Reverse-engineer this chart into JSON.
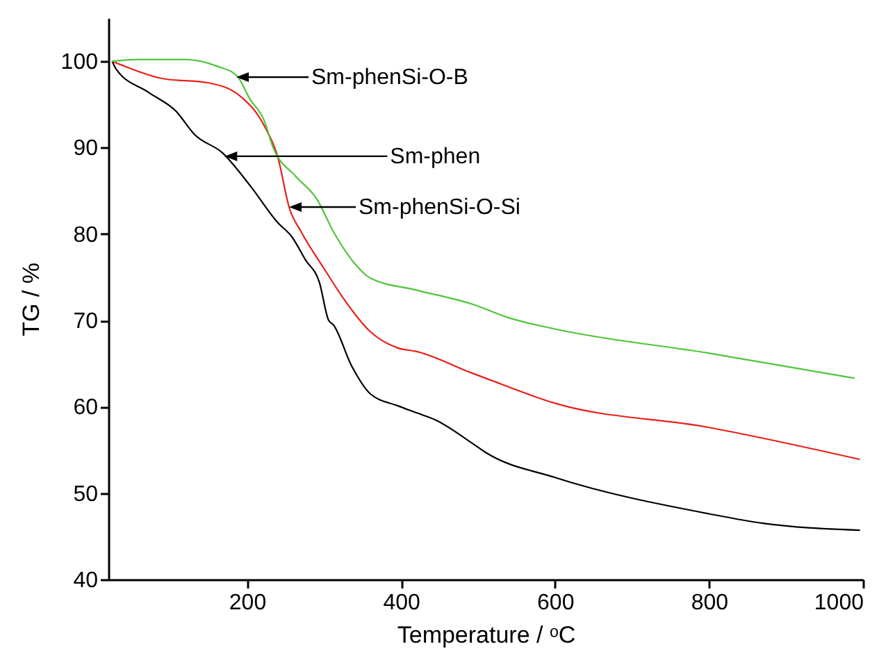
{
  "chart_data": {
    "type": "line",
    "xlabel": "Temperature / ᵒC",
    "ylabel": "TG / %",
    "xlim": [
      20,
      1000
    ],
    "ylim": [
      40,
      105
    ],
    "xticks": [
      200,
      400,
      600,
      800,
      1000
    ],
    "yticks": [
      40,
      50,
      60,
      70,
      80,
      90,
      100
    ],
    "grid": false,
    "line_style": "solid",
    "marker": "none",
    "series": [
      {
        "color": "#000000",
        "x": [
          25,
          30,
          72,
          108,
          132,
          168,
          204,
          240,
          258,
          276,
          294,
          306,
          312,
          336,
          360,
          396,
          420,
          444,
          492,
          510,
          600,
          800,
          870,
          996
        ],
        "values": [
          100,
          99.1,
          96.4,
          94.2,
          91.5,
          89.4,
          85.6,
          81.3,
          79.7,
          77,
          74.4,
          70,
          69.5,
          64.7,
          61.5,
          60.1,
          59.3,
          58.5,
          55.8,
          54.7,
          51.8,
          47.6,
          46.5,
          45.7
        ]
      },
      {
        "color": "#e8201a",
        "x": [
          25,
          36,
          90,
          150,
          192,
          222,
          240,
          255,
          270,
          300,
          324,
          360,
          396,
          420,
          492,
          510,
          600,
          800,
          996
        ],
        "values": [
          100,
          99.6,
          98,
          97.5,
          95.9,
          92.6,
          88.9,
          83,
          80.3,
          76,
          72.7,
          68.7,
          66.8,
          66.4,
          63.9,
          63.3,
          60.4,
          57.6,
          53.9
        ]
      },
      {
        "color": "#4fc53a",
        "x": [
          25,
          60,
          119,
          162,
          187,
          204,
          222,
          234,
          263,
          291,
          312,
          336,
          360,
          420,
          492,
          540,
          600,
          800,
          989
        ],
        "values": [
          100,
          100.2,
          100.2,
          99.4,
          98.3,
          95.6,
          93.2,
          90,
          86.7,
          84,
          80.3,
          77,
          74.9,
          73.5,
          71.9,
          70.3,
          69,
          66.2,
          63.3
        ]
      }
    ],
    "annotations": [
      "Sm-phenSi-O-B",
      {
        "text": "Sm-phen",
        "x": 171,
        "y": 89
      },
      "Sm-phenSi-O-Si"
    ]
  }
}
